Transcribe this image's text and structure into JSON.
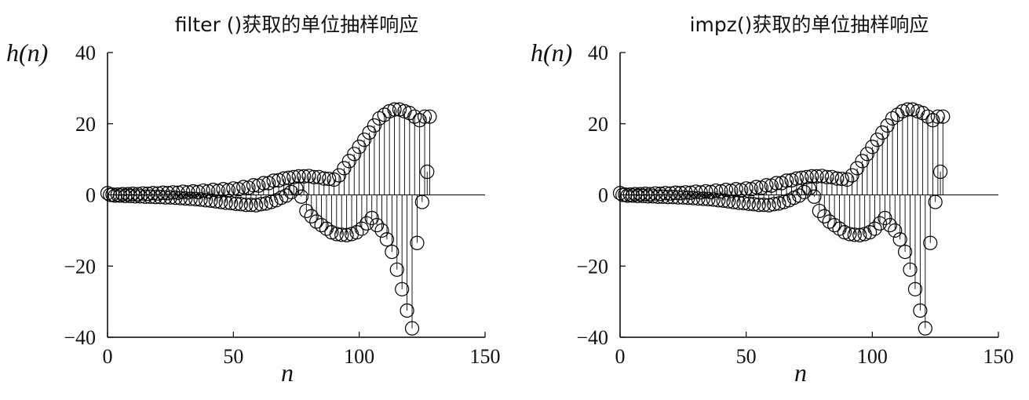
{
  "chart_data": [
    {
      "type": "stem",
      "title": "filter ()获取的单位抽样响应",
      "xlabel": "n",
      "ylabel": "h(n)",
      "xlim": [
        0,
        150
      ],
      "ylim": [
        -40,
        40
      ],
      "xticks": [
        "0",
        "50",
        "100",
        "150"
      ],
      "yticks": [
        "40",
        "20",
        "0",
        "−20",
        "−40"
      ],
      "marker": "circle",
      "series": [
        {
          "x": [
            0,
            2,
            4,
            6,
            8,
            10,
            12,
            14,
            16,
            18,
            20,
            22,
            24,
            26,
            28,
            30,
            32,
            34,
            36,
            38,
            40,
            42,
            44,
            46,
            48,
            50,
            52,
            54,
            56,
            58,
            60,
            62,
            64,
            66,
            68,
            70,
            72,
            74,
            76,
            78,
            80,
            82,
            84,
            86,
            88,
            90,
            92,
            94,
            96,
            98,
            100,
            102,
            104,
            106,
            108,
            110,
            112,
            114,
            116,
            118,
            120,
            122,
            124,
            126,
            128
          ],
          "values": [
            0.5,
            0.1,
            0.1,
            0.2,
            0.2,
            0.3,
            0.2,
            0.4,
            0.3,
            0.5,
            0.4,
            0.6,
            0.5,
            0.7,
            0.6,
            0.9,
            0.7,
            1.0,
            0.8,
            1.2,
            1.0,
            1.4,
            1.1,
            1.6,
            1.3,
            1.8,
            1.6,
            2.2,
            2.0,
            2.7,
            2.6,
            3.3,
            3.3,
            4.0,
            4.1,
            4.6,
            4.8,
            5.0,
            5.2,
            5.2,
            5.3,
            5.0,
            5.0,
            4.6,
            4.5,
            4.3,
            5.5,
            7.5,
            9.5,
            11.5,
            13.5,
            15.5,
            17.5,
            19.5,
            21.5,
            22.5,
            23.5,
            24.0,
            24.0,
            23.5,
            23.0,
            22.0,
            21.0,
            22.0,
            22.0
          ]
        },
        {
          "x": [
            1,
            3,
            5,
            7,
            9,
            11,
            13,
            15,
            17,
            19,
            21,
            23,
            25,
            27,
            29,
            31,
            33,
            35,
            37,
            39,
            41,
            43,
            45,
            47,
            49,
            51,
            53,
            55,
            57,
            59,
            61,
            63,
            65,
            67,
            69,
            71,
            73,
            75,
            77,
            79,
            81,
            83,
            85,
            87,
            89,
            91,
            93,
            95,
            97,
            99,
            101,
            103,
            105,
            107,
            109,
            111,
            113,
            115,
            117,
            119,
            121,
            123,
            125,
            127
          ],
          "values": [
            0.0,
            -0.2,
            -0.2,
            -0.3,
            -0.3,
            -0.4,
            -0.4,
            -0.5,
            -0.5,
            -0.6,
            -0.6,
            -0.7,
            -0.7,
            -0.8,
            -0.9,
            -1.0,
            -1.1,
            -1.2,
            -1.3,
            -1.5,
            -1.6,
            -1.8,
            -2.0,
            -2.2,
            -2.3,
            -2.5,
            -2.6,
            -2.8,
            -2.8,
            -2.9,
            -2.6,
            -2.4,
            -2.0,
            -1.5,
            -0.8,
            -0.2,
            0.8,
            1.8,
            -0.5,
            -4.5,
            -6.0,
            -7.5,
            -8.5,
            -9.5,
            -10.5,
            -11.0,
            -11.2,
            -11.3,
            -11.0,
            -10.5,
            -9.5,
            -8.0,
            -6.5,
            -8.5,
            -10.0,
            -12.5,
            -16.0,
            -21.0,
            -26.5,
            -32.5,
            -37.5,
            -13.5,
            -2.0,
            6.5
          ]
        }
      ]
    },
    {
      "type": "stem",
      "title": "impz()获取的单位抽样响应",
      "xlabel": "n",
      "ylabel": "h(n)",
      "xlim": [
        0,
        150
      ],
      "ylim": [
        -40,
        40
      ],
      "xticks": [
        "0",
        "50",
        "100",
        "150"
      ],
      "yticks": [
        "40",
        "20",
        "0",
        "−20",
        "−40"
      ],
      "marker": "circle",
      "series": [
        {
          "x": [
            0,
            2,
            4,
            6,
            8,
            10,
            12,
            14,
            16,
            18,
            20,
            22,
            24,
            26,
            28,
            30,
            32,
            34,
            36,
            38,
            40,
            42,
            44,
            46,
            48,
            50,
            52,
            54,
            56,
            58,
            60,
            62,
            64,
            66,
            68,
            70,
            72,
            74,
            76,
            78,
            80,
            82,
            84,
            86,
            88,
            90,
            92,
            94,
            96,
            98,
            100,
            102,
            104,
            106,
            108,
            110,
            112,
            114,
            116,
            118,
            120,
            122,
            124,
            126,
            128
          ],
          "values": [
            0.5,
            0.1,
            0.1,
            0.2,
            0.2,
            0.3,
            0.2,
            0.4,
            0.3,
            0.5,
            0.4,
            0.6,
            0.5,
            0.7,
            0.6,
            0.9,
            0.7,
            1.0,
            0.8,
            1.2,
            1.0,
            1.4,
            1.1,
            1.6,
            1.3,
            1.8,
            1.6,
            2.2,
            2.0,
            2.7,
            2.6,
            3.3,
            3.3,
            4.0,
            4.1,
            4.6,
            4.8,
            5.0,
            5.2,
            5.2,
            5.3,
            5.0,
            5.0,
            4.6,
            4.5,
            4.3,
            5.5,
            7.5,
            9.5,
            11.5,
            13.5,
            15.5,
            17.5,
            19.5,
            21.5,
            22.5,
            23.5,
            24.0,
            24.0,
            23.5,
            23.0,
            22.0,
            21.0,
            22.0,
            22.0
          ]
        },
        {
          "x": [
            1,
            3,
            5,
            7,
            9,
            11,
            13,
            15,
            17,
            19,
            21,
            23,
            25,
            27,
            29,
            31,
            33,
            35,
            37,
            39,
            41,
            43,
            45,
            47,
            49,
            51,
            53,
            55,
            57,
            59,
            61,
            63,
            65,
            67,
            69,
            71,
            73,
            75,
            77,
            79,
            81,
            83,
            85,
            87,
            89,
            91,
            93,
            95,
            97,
            99,
            101,
            103,
            105,
            107,
            109,
            111,
            113,
            115,
            117,
            119,
            121,
            123,
            125,
            127
          ],
          "values": [
            0.0,
            -0.2,
            -0.2,
            -0.3,
            -0.3,
            -0.4,
            -0.4,
            -0.5,
            -0.5,
            -0.6,
            -0.6,
            -0.7,
            -0.7,
            -0.8,
            -0.9,
            -1.0,
            -1.1,
            -1.2,
            -1.3,
            -1.5,
            -1.6,
            -1.8,
            -2.0,
            -2.2,
            -2.3,
            -2.5,
            -2.6,
            -2.8,
            -2.8,
            -2.9,
            -2.6,
            -2.4,
            -2.0,
            -1.5,
            -0.8,
            -0.2,
            0.8,
            1.8,
            -0.5,
            -4.5,
            -6.0,
            -7.5,
            -8.5,
            -9.5,
            -10.5,
            -11.0,
            -11.2,
            -11.3,
            -11.0,
            -10.5,
            -9.5,
            -8.0,
            -6.5,
            -8.5,
            -10.0,
            -12.5,
            -16.0,
            -21.0,
            -26.5,
            -32.5,
            -37.5,
            -13.5,
            -2.0,
            6.5
          ]
        }
      ]
    }
  ]
}
